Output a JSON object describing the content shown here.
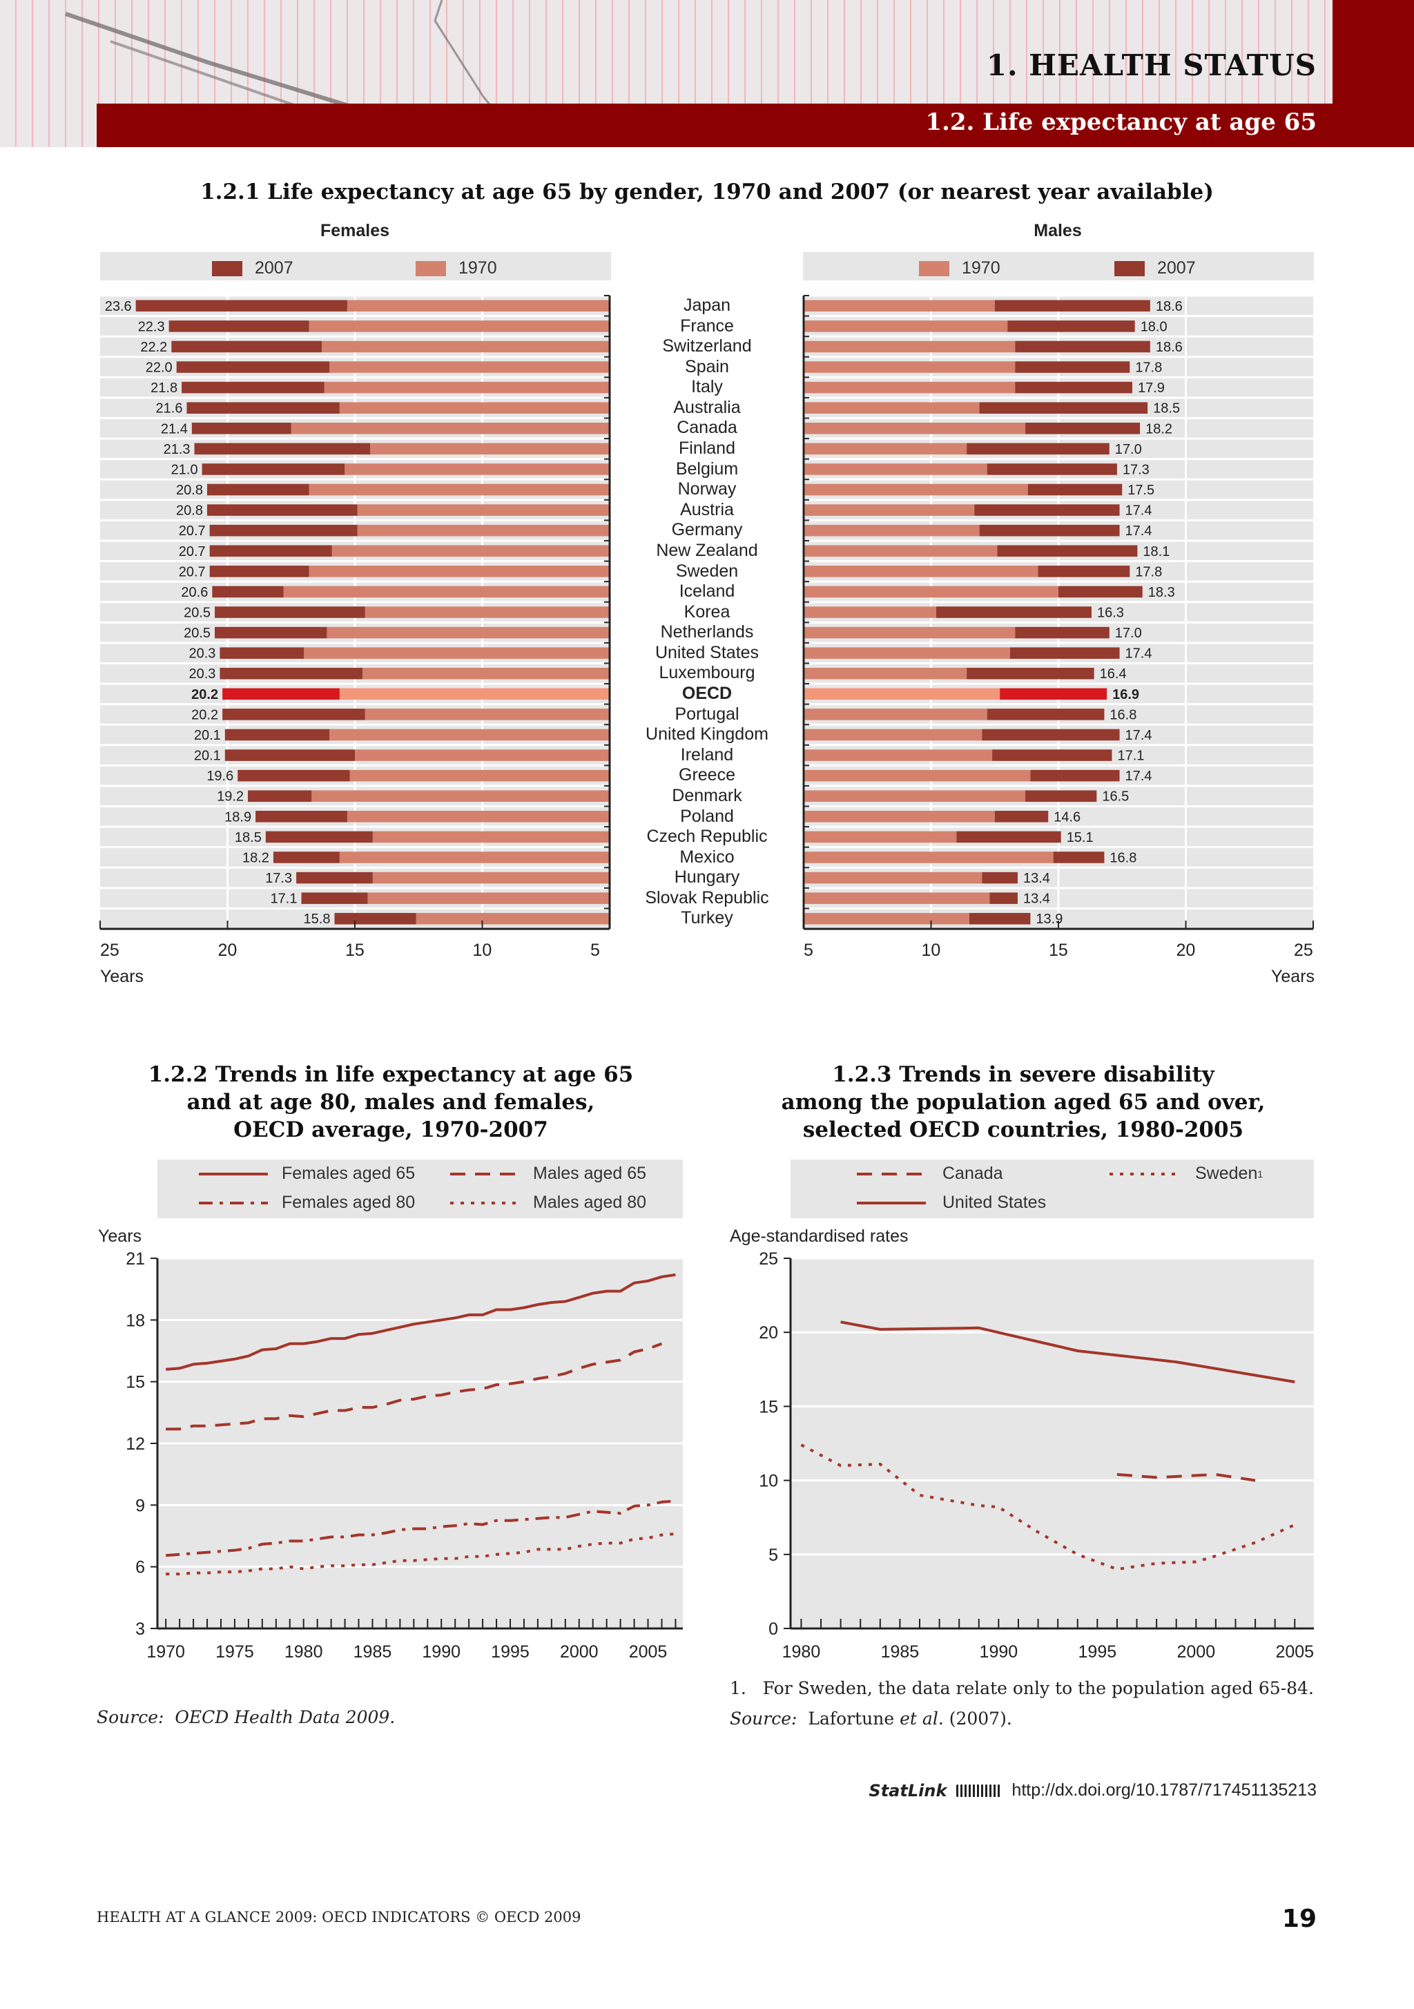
{
  "header": {
    "chapter": "1. HEALTH STATUS",
    "section": "1.2. Life expectancy at age 65"
  },
  "figure1": {
    "title": "1.2.1 Life expectancy at age 65 by gender, 1970 and 2007 (or nearest year available)",
    "countries": [
      "Japan",
      "France",
      "Switzerland",
      "Spain",
      "Italy",
      "Australia",
      "Canada",
      "Finland",
      "Belgium",
      "Norway",
      "Austria",
      "Germany",
      "New Zealand",
      "Sweden",
      "Iceland",
      "Korea",
      "Netherlands",
      "United States",
      "Luxembourg",
      "OECD",
      "Portugal",
      "United Kingdom",
      "Ireland",
      "Greece",
      "Denmark",
      "Poland",
      "Czech Republic",
      "Mexico",
      "Hungary",
      "Slovak Republic",
      "Turkey"
    ]
  },
  "figure2": {
    "title_lines": [
      "1.2.2 Trends in life expectancy at age 65",
      "and at age 80, males and females,",
      "OECD average, 1970-2007"
    ],
    "source_label": "Source:",
    "source_text": "OECD Health Data 2009."
  },
  "figure3": {
    "title_lines": [
      "1.2.3 Trends in severe disability",
      "among the population aged 65 and over,",
      "selected OECD countries, 1980-2005"
    ],
    "footnote_num": "1.",
    "footnote": "For Sweden, the data relate only to the population aged 65-84.",
    "source_label": "Source:",
    "source_text_pre": "Lafortune ",
    "source_text_em": "et al.",
    "source_text_post": " (2007)."
  },
  "statlink": {
    "label": "StatLink",
    "url": "http://dx.doi.org/10.1787/717451135213"
  },
  "footer": {
    "text": "HEALTH AT A GLANCE 2009: OECD INDICATORS © OECD 2009",
    "page": "19"
  },
  "colors": {
    "dark": "#953a2e",
    "light": "#d4826e",
    "oecd_dark": "#d7191f",
    "oecd_light": "#f4967a",
    "line": "#a3362a",
    "band": "#8b0000"
  },
  "chart_data": [
    {
      "type": "bar",
      "orientation": "horizontal",
      "panel": "Females",
      "xlabel": "Years",
      "xlim": [
        25,
        5
      ],
      "xticks": [
        25,
        20,
        15,
        10,
        5
      ],
      "grid": true,
      "legend": "top",
      "highlight": "OECD",
      "series": [
        {
          "name": "2007",
          "color": "#953a2e",
          "values": [
            23.6,
            22.3,
            22.2,
            22.0,
            21.8,
            21.6,
            21.4,
            21.3,
            21.0,
            20.8,
            20.8,
            20.7,
            20.7,
            20.7,
            20.6,
            20.5,
            20.5,
            20.3,
            20.3,
            20.2,
            20.2,
            20.1,
            20.1,
            19.6,
            19.2,
            18.9,
            18.5,
            18.2,
            17.3,
            17.1,
            15.8
          ]
        },
        {
          "name": "1970",
          "color": "#d4826e",
          "values": [
            15.3,
            16.8,
            16.3,
            16.0,
            16.2,
            15.6,
            17.5,
            14.4,
            15.4,
            16.8,
            14.9,
            14.9,
            15.9,
            16.8,
            17.8,
            14.6,
            16.1,
            17.0,
            14.7,
            15.6,
            14.6,
            16.0,
            15.0,
            15.2,
            16.7,
            15.3,
            14.3,
            15.6,
            14.3,
            14.5,
            12.6
          ]
        }
      ],
      "data_labels": [
        "23.6",
        "22.3",
        "22.2",
        "22.0",
        "21.8",
        "21.6",
        "21.4",
        "21.3",
        "21.0",
        "20.8",
        "20.8",
        "20.7",
        "20.7",
        "20.7",
        "20.6",
        "20.5",
        "20.5",
        "20.3",
        "20.3",
        "20.2",
        "20.2",
        "20.1",
        "20.1",
        "19.6",
        "19.2",
        "18.9",
        "18.5",
        "18.2",
        "17.3",
        "17.1",
        "15.8"
      ]
    },
    {
      "type": "bar",
      "orientation": "horizontal",
      "panel": "Males",
      "xlabel": "Years",
      "xlim": [
        5,
        25
      ],
      "xticks": [
        5,
        10,
        15,
        20,
        25
      ],
      "grid": true,
      "legend": "top",
      "highlight": "OECD",
      "series": [
        {
          "name": "1970",
          "color": "#d4826e",
          "values": [
            12.5,
            13.0,
            13.3,
            13.3,
            13.3,
            11.9,
            13.7,
            11.4,
            12.2,
            13.8,
            11.7,
            11.9,
            12.6,
            14.2,
            15.0,
            10.2,
            13.3,
            13.1,
            11.4,
            12.7,
            12.2,
            12.0,
            12.4,
            13.9,
            13.7,
            12.5,
            11.0,
            14.8,
            12.0,
            12.3,
            11.5
          ]
        },
        {
          "name": "2007",
          "color": "#953a2e",
          "values": [
            18.6,
            18.0,
            18.6,
            17.8,
            17.9,
            18.5,
            18.2,
            17.0,
            17.3,
            17.5,
            17.4,
            17.4,
            18.1,
            17.8,
            18.3,
            16.3,
            17.0,
            17.4,
            16.4,
            16.9,
            16.8,
            17.4,
            17.1,
            17.4,
            16.5,
            14.6,
            15.1,
            16.8,
            13.4,
            13.4,
            13.9
          ]
        }
      ],
      "data_labels": [
        "18.6",
        "18.0",
        "18.6",
        "17.8",
        "17.9",
        "18.5",
        "18.2",
        "17.0",
        "17.3",
        "17.5",
        "17.4",
        "17.4",
        "18.1",
        "17.8",
        "18.3",
        "16.3",
        "17.0",
        "17.4",
        "16.4",
        "16.9",
        "16.8",
        "17.4",
        "17.1",
        "17.4",
        "16.5",
        "14.6",
        "15.1",
        "16.8",
        "13.4",
        "13.4",
        "13.9"
      ]
    },
    {
      "type": "line",
      "ylabel": "Years",
      "ylim": [
        3,
        21
      ],
      "yticks": [
        3,
        6,
        9,
        12,
        15,
        18,
        21
      ],
      "xticks": [
        1970,
        1975,
        1980,
        1985,
        1990,
        1995,
        2000,
        2005
      ],
      "grid": true,
      "legend": "top",
      "x": [
        1970,
        1971,
        1972,
        1973,
        1974,
        1975,
        1976,
        1977,
        1978,
        1979,
        1980,
        1981,
        1982,
        1983,
        1984,
        1985,
        1986,
        1987,
        1988,
        1989,
        1990,
        1991,
        1992,
        1993,
        1994,
        1995,
        1996,
        1997,
        1998,
        1999,
        2000,
        2001,
        2002,
        2003,
        2004,
        2005,
        2006,
        2007
      ],
      "series": [
        {
          "name": "Females aged 65",
          "style": "solid",
          "values": [
            15.6,
            15.65,
            15.85,
            15.9,
            16.0,
            16.1,
            16.25,
            16.55,
            16.6,
            16.85,
            16.85,
            16.95,
            17.1,
            17.1,
            17.3,
            17.35,
            17.5,
            17.65,
            17.8,
            17.9,
            18.0,
            18.1,
            18.25,
            18.25,
            18.5,
            18.5,
            18.6,
            18.75,
            18.85,
            18.9,
            19.1,
            19.3,
            19.4,
            19.4,
            19.8,
            19.9,
            20.1,
            20.2
          ]
        },
        {
          "name": "Males aged 65",
          "style": "dashed",
          "values": [
            12.7,
            12.7,
            12.85,
            12.85,
            12.9,
            12.95,
            13.0,
            13.2,
            13.2,
            13.35,
            13.3,
            13.45,
            13.6,
            13.6,
            13.75,
            13.75,
            13.9,
            14.1,
            14.15,
            14.3,
            14.35,
            14.5,
            14.6,
            14.65,
            14.85,
            14.9,
            15.0,
            15.15,
            15.25,
            15.4,
            15.65,
            15.85,
            15.95,
            16.05,
            16.45,
            16.6,
            16.85,
            null
          ]
        },
        {
          "name": "Females aged 80",
          "style": "dashdot",
          "values": [
            6.55,
            6.6,
            6.65,
            6.7,
            6.75,
            6.8,
            6.9,
            7.1,
            7.15,
            7.25,
            7.25,
            7.35,
            7.45,
            7.45,
            7.55,
            7.55,
            7.65,
            7.8,
            7.85,
            7.85,
            7.95,
            8.0,
            8.1,
            8.05,
            8.25,
            8.25,
            8.3,
            8.35,
            8.4,
            8.4,
            8.55,
            8.7,
            8.65,
            8.6,
            8.95,
            9.0,
            9.15,
            9.2
          ]
        },
        {
          "name": "Males aged 80",
          "style": "dotted",
          "values": [
            5.65,
            5.65,
            5.7,
            5.7,
            5.75,
            5.75,
            5.8,
            5.9,
            5.9,
            6.0,
            5.9,
            6.0,
            6.05,
            6.05,
            6.1,
            6.1,
            6.2,
            6.3,
            6.3,
            6.35,
            6.4,
            6.4,
            6.5,
            6.5,
            6.6,
            6.65,
            6.7,
            6.85,
            6.85,
            6.85,
            7.0,
            7.1,
            7.15,
            7.15,
            7.35,
            7.4,
            7.55,
            7.6
          ]
        }
      ]
    },
    {
      "type": "line",
      "ylabel": "Age-standardised rates",
      "ylim": [
        0,
        25
      ],
      "yticks": [
        0,
        5,
        10,
        15,
        20,
        25
      ],
      "xticks": [
        1980,
        1985,
        1990,
        1995,
        2000,
        2005
      ],
      "grid": true,
      "legend": "top",
      "series": [
        {
          "name": "Canada",
          "style": "dashed",
          "points": [
            [
              1996,
              10.4
            ],
            [
              1998,
              10.2
            ],
            [
              2001,
              10.4
            ],
            [
              2003,
              10.0
            ]
          ]
        },
        {
          "name": "Sweden",
          "name_sup": "1",
          "style": "dotted",
          "points": [
            [
              1980,
              12.4
            ],
            [
              1982,
              11.0
            ],
            [
              1984,
              11.1
            ],
            [
              1986,
              9.0
            ],
            [
              1989,
              8.3
            ],
            [
              1990,
              8.2
            ],
            [
              1992,
              6.5
            ],
            [
              1994,
              5.0
            ],
            [
              1996,
              4.0
            ],
            [
              1998,
              4.4
            ],
            [
              2000,
              4.5
            ],
            [
              2001,
              4.9
            ],
            [
              2003,
              5.8
            ],
            [
              2005,
              7.0
            ]
          ]
        },
        {
          "name": "United States",
          "style": "solid",
          "points": [
            [
              1982,
              20.7
            ],
            [
              1984,
              20.2
            ],
            [
              1989,
              20.3
            ],
            [
              1994,
              18.75
            ],
            [
              1999,
              18.0
            ],
            [
              2005,
              16.65
            ]
          ]
        }
      ]
    }
  ]
}
